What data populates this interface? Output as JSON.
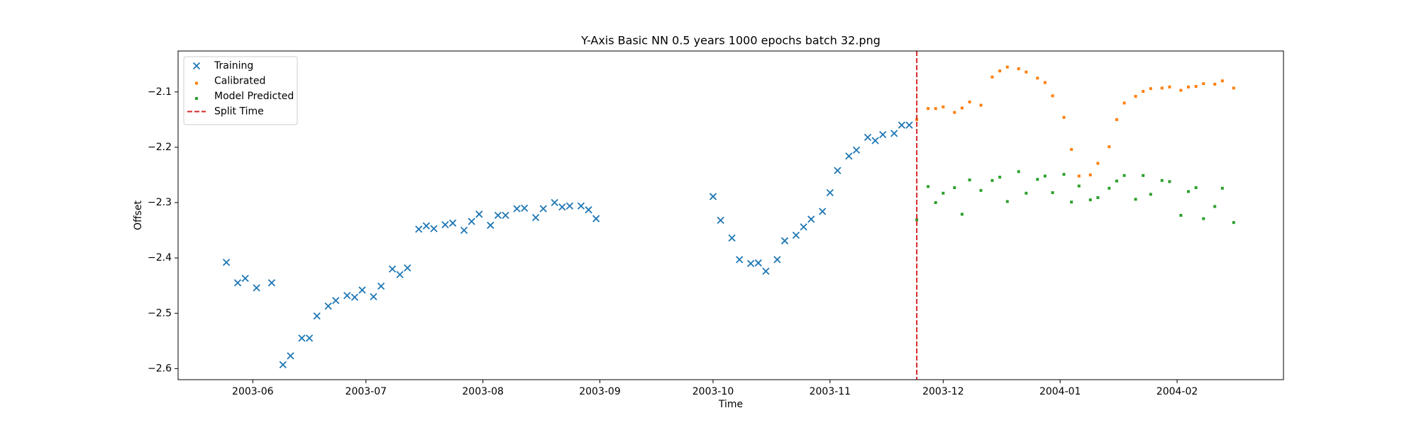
{
  "chart_data": {
    "type": "scatter",
    "title": "Y-Axis Basic NN 0.5 years 1000 epochs batch 32.png",
    "x_label": "Time",
    "y_label": "Offset",
    "legend": "upper left",
    "xlim": [
      12184.2,
      12477.2
    ],
    "ylim": [
      -2.62,
      -2.026
    ],
    "xticks": [
      {
        "value": 12204,
        "label": "2003-06"
      },
      {
        "value": 12234,
        "label": "2003-07"
      },
      {
        "value": 12265,
        "label": "2003-08"
      },
      {
        "value": 12296,
        "label": "2003-09"
      },
      {
        "value": 12326,
        "label": "2003-10"
      },
      {
        "value": 12357,
        "label": "2003-11"
      },
      {
        "value": 12387,
        "label": "2003-12"
      },
      {
        "value": 12418,
        "label": "2004-01"
      },
      {
        "value": 12449,
        "label": "2004-02"
      }
    ],
    "yticks": [
      {
        "value": -2.6,
        "label": "−2.6"
      },
      {
        "value": -2.5,
        "label": "−2.5"
      },
      {
        "value": -2.4,
        "label": "−2.4"
      },
      {
        "value": -2.3,
        "label": "−2.3"
      },
      {
        "value": -2.2,
        "label": "−2.2"
      },
      {
        "value": -2.1,
        "label": "−2.1"
      }
    ],
    "series": [
      {
        "name": "Training",
        "color": "#1f77b4",
        "marker": "x",
        "x": [
          12197,
          12200,
          12202,
          12205,
          12209,
          12212,
          12214,
          12217,
          12219,
          12221,
          12224,
          12226,
          12229,
          12231,
          12233,
          12236,
          12238,
          12241,
          12243,
          12245,
          12248,
          12250,
          12252,
          12255,
          12257,
          12260,
          12262,
          12264,
          12267,
          12269,
          12271,
          12274,
          12276,
          12279,
          12281,
          12284,
          12286,
          12288,
          12291,
          12293,
          12295,
          12326,
          12328,
          12331,
          12333,
          12336,
          12338,
          12340,
          12343,
          12345,
          12348,
          12350,
          12352,
          12355,
          12357,
          12359,
          12362,
          12364,
          12367,
          12369,
          12371,
          12374,
          12376,
          12378
        ],
        "values": [
          -2.408,
          -2.445,
          -2.437,
          -2.454,
          -2.445,
          -2.593,
          -2.577,
          -2.545,
          -2.545,
          -2.505,
          -2.487,
          -2.477,
          -2.468,
          -2.471,
          -2.458,
          -2.47,
          -2.451,
          -2.42,
          -2.43,
          -2.418,
          -2.348,
          -2.342,
          -2.347,
          -2.34,
          -2.337,
          -2.35,
          -2.334,
          -2.321,
          -2.341,
          -2.323,
          -2.323,
          -2.311,
          -2.31,
          -2.327,
          -2.311,
          -2.3,
          -2.308,
          -2.306,
          -2.306,
          -2.313,
          -2.329,
          -2.289,
          -2.332,
          -2.364,
          -2.403,
          -2.41,
          -2.409,
          -2.424,
          -2.403,
          -2.369,
          -2.359,
          -2.344,
          -2.33,
          -2.316,
          -2.282,
          -2.242,
          -2.216,
          -2.205,
          -2.182,
          -2.188,
          -2.177,
          -2.175,
          -2.16,
          -2.16
        ]
      },
      {
        "name": "Calibrated",
        "color": "#ff7f0e",
        "marker": "square",
        "x": [
          12380,
          12383,
          12385,
          12387,
          12390,
          12392,
          12394,
          12397,
          12400,
          12402,
          12404,
          12407,
          12409,
          12412,
          12414,
          12416,
          12419,
          12421,
          12423,
          12426,
          12428,
          12431,
          12433,
          12435,
          12438,
          12440,
          12442,
          12445,
          12447,
          12450,
          12452,
          12454,
          12456,
          12459,
          12461,
          12464
        ],
        "values": [
          -2.15,
          -2.13,
          -2.13,
          -2.127,
          -2.137,
          -2.129,
          -2.118,
          -2.124,
          -2.073,
          -2.062,
          -2.055,
          -2.058,
          -2.064,
          -2.075,
          -2.083,
          -2.107,
          -2.146,
          -2.204,
          -2.252,
          -2.25,
          -2.229,
          -2.199,
          -2.15,
          -2.12,
          -2.108,
          -2.099,
          -2.094,
          -2.093,
          -2.091,
          -2.097,
          -2.091,
          -2.09,
          -2.085,
          -2.086,
          -2.08,
          -2.093
        ]
      },
      {
        "name": "Model Predicted",
        "color": "#2ca02c",
        "marker": "square",
        "x": [
          12380,
          12383,
          12385,
          12387,
          12390,
          12392,
          12394,
          12397,
          12400,
          12402,
          12404,
          12407,
          12409,
          12412,
          12414,
          12416,
          12419,
          12421,
          12423,
          12426,
          12428,
          12431,
          12433,
          12435,
          12438,
          12440,
          12442,
          12445,
          12447,
          12450,
          12452,
          12454,
          12456,
          12459,
          12461,
          12464
        ],
        "values": [
          -2.331,
          -2.271,
          -2.3,
          -2.283,
          -2.273,
          -2.321,
          -2.259,
          -2.278,
          -2.26,
          -2.254,
          -2.298,
          -2.244,
          -2.283,
          -2.258,
          -2.252,
          -2.282,
          -2.249,
          -2.299,
          -2.27,
          -2.295,
          -2.291,
          -2.274,
          -2.261,
          -2.251,
          -2.294,
          -2.251,
          -2.285,
          -2.26,
          -2.262,
          -2.323,
          -2.28,
          -2.273,
          -2.329,
          -2.307,
          -2.274,
          -2.336
        ]
      }
    ],
    "split_time": {
      "name": "Split Time",
      "color": "#d62728",
      "x": 12380
    }
  }
}
